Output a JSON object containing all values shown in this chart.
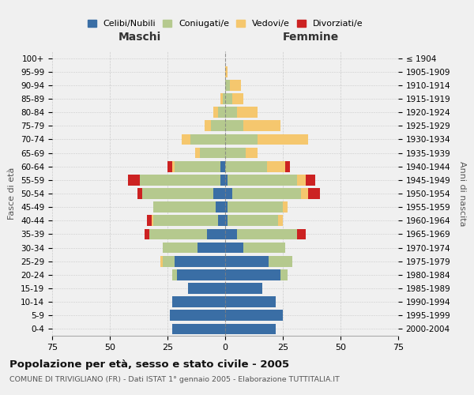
{
  "age_groups": [
    "0-4",
    "5-9",
    "10-14",
    "15-19",
    "20-24",
    "25-29",
    "30-34",
    "35-39",
    "40-44",
    "45-49",
    "50-54",
    "55-59",
    "60-64",
    "65-69",
    "70-74",
    "75-79",
    "80-84",
    "85-89",
    "90-94",
    "95-99",
    "100+"
  ],
  "birth_years": [
    "2000-2004",
    "1995-1999",
    "1990-1994",
    "1985-1989",
    "1980-1984",
    "1975-1979",
    "1970-1974",
    "1965-1969",
    "1960-1964",
    "1955-1959",
    "1950-1954",
    "1945-1949",
    "1940-1944",
    "1935-1939",
    "1930-1934",
    "1925-1929",
    "1920-1924",
    "1915-1919",
    "1910-1914",
    "1905-1909",
    "≤ 1904"
  ],
  "colors": {
    "celibe": "#3a6ea5",
    "coniugato": "#b5c98e",
    "vedovo": "#f5c76e",
    "divorziato": "#cc2222"
  },
  "maschi": {
    "celibe": [
      23,
      24,
      23,
      16,
      21,
      22,
      12,
      8,
      3,
      4,
      5,
      2,
      2,
      0,
      0,
      0,
      0,
      0,
      0,
      0,
      0
    ],
    "coniugato": [
      0,
      0,
      0,
      0,
      2,
      5,
      15,
      25,
      28,
      27,
      31,
      35,
      20,
      11,
      15,
      6,
      3,
      1,
      0,
      0,
      0
    ],
    "vedovo": [
      0,
      0,
      0,
      0,
      0,
      1,
      0,
      0,
      1,
      0,
      0,
      0,
      1,
      2,
      4,
      3,
      2,
      1,
      0,
      0,
      0
    ],
    "divorziato": [
      0,
      0,
      0,
      0,
      0,
      0,
      0,
      2,
      2,
      0,
      2,
      5,
      2,
      0,
      0,
      0,
      0,
      0,
      0,
      0,
      0
    ]
  },
  "femmine": {
    "nubile": [
      22,
      25,
      22,
      16,
      24,
      19,
      8,
      5,
      1,
      1,
      3,
      1,
      0,
      0,
      0,
      0,
      0,
      0,
      0,
      0,
      0
    ],
    "coniugata": [
      0,
      0,
      0,
      0,
      3,
      10,
      18,
      26,
      22,
      24,
      30,
      30,
      18,
      9,
      14,
      8,
      5,
      3,
      2,
      0,
      0
    ],
    "vedova": [
      0,
      0,
      0,
      0,
      0,
      0,
      0,
      0,
      2,
      2,
      3,
      4,
      8,
      5,
      22,
      16,
      9,
      5,
      5,
      1,
      0
    ],
    "divorziata": [
      0,
      0,
      0,
      0,
      0,
      0,
      0,
      4,
      0,
      0,
      5,
      4,
      2,
      0,
      0,
      0,
      0,
      0,
      0,
      0,
      0
    ]
  },
  "xlim": 75,
  "title": "Popolazione per età, sesso e stato civile - 2005",
  "subtitle": "COMUNE DI TRIVIGLIANO (FR) - Dati ISTAT 1° gennaio 2005 - Elaborazione TUTTITALIA.IT",
  "ylabel_left": "Fasce di età",
  "ylabel_right": "Anni di nascita",
  "xlabel_left": "Maschi",
  "xlabel_right": "Femmine",
  "legend_labels": [
    "Celibi/Nubili",
    "Coniugati/e",
    "Vedovi/e",
    "Divorziati/e"
  ],
  "background_color": "#f0f0f0",
  "grid_color": "#cccccc",
  "label_color": "#555555"
}
